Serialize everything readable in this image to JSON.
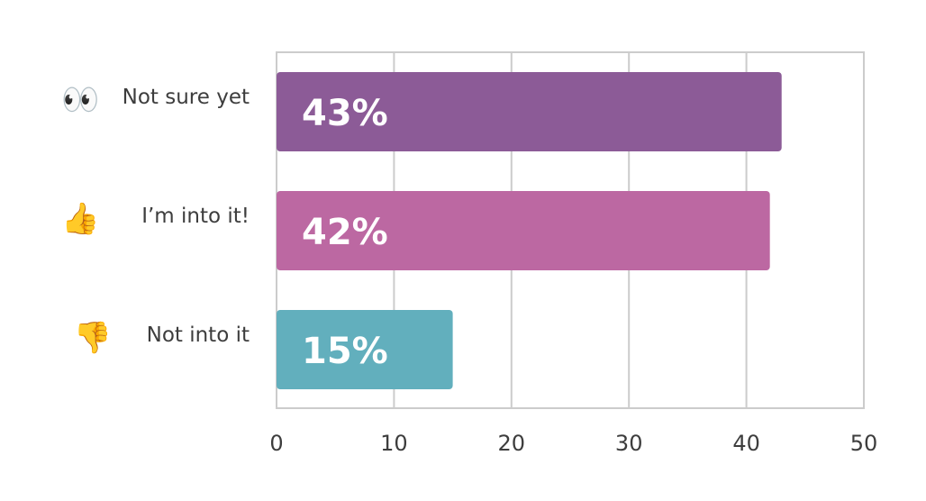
{
  "chart_data": {
    "type": "bar",
    "orientation": "horizontal",
    "categories": [
      "Not sure yet",
      "I’m into it!",
      "Not into it"
    ],
    "category_icons": [
      "eyes-icon",
      "thumbs-up-icon",
      "thumbs-down-icon"
    ],
    "category_emoji": [
      "👀",
      "👍",
      "👎"
    ],
    "values": [
      43,
      42,
      15
    ],
    "data_labels": [
      "43%",
      "42%",
      "15%"
    ],
    "colors": [
      "#8c5b97",
      "#bc68a2",
      "#62afbd"
    ],
    "xlim": [
      0,
      50
    ],
    "xticks": [
      0,
      10,
      20,
      30,
      40,
      50
    ],
    "grid": true,
    "title": "",
    "xlabel": "",
    "ylabel": ""
  }
}
